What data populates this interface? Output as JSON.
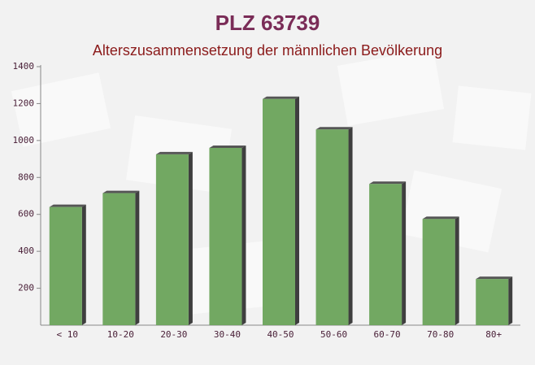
{
  "chart_data": {
    "type": "bar",
    "title": "PLZ 63739",
    "subtitle": "Alterszusammensetzung der männlichen Bevölkerung",
    "categories": [
      "< 10",
      "10-20",
      "20-30",
      "30-40",
      "40-50",
      "50-60",
      "60-70",
      "70-80",
      "80+"
    ],
    "values": [
      640,
      715,
      925,
      960,
      1225,
      1060,
      765,
      575,
      250
    ],
    "color": "#6aa35a",
    "ylim": [
      0,
      1400
    ],
    "yticks": [
      200,
      400,
      600,
      800,
      1000,
      1200,
      1400
    ]
  }
}
